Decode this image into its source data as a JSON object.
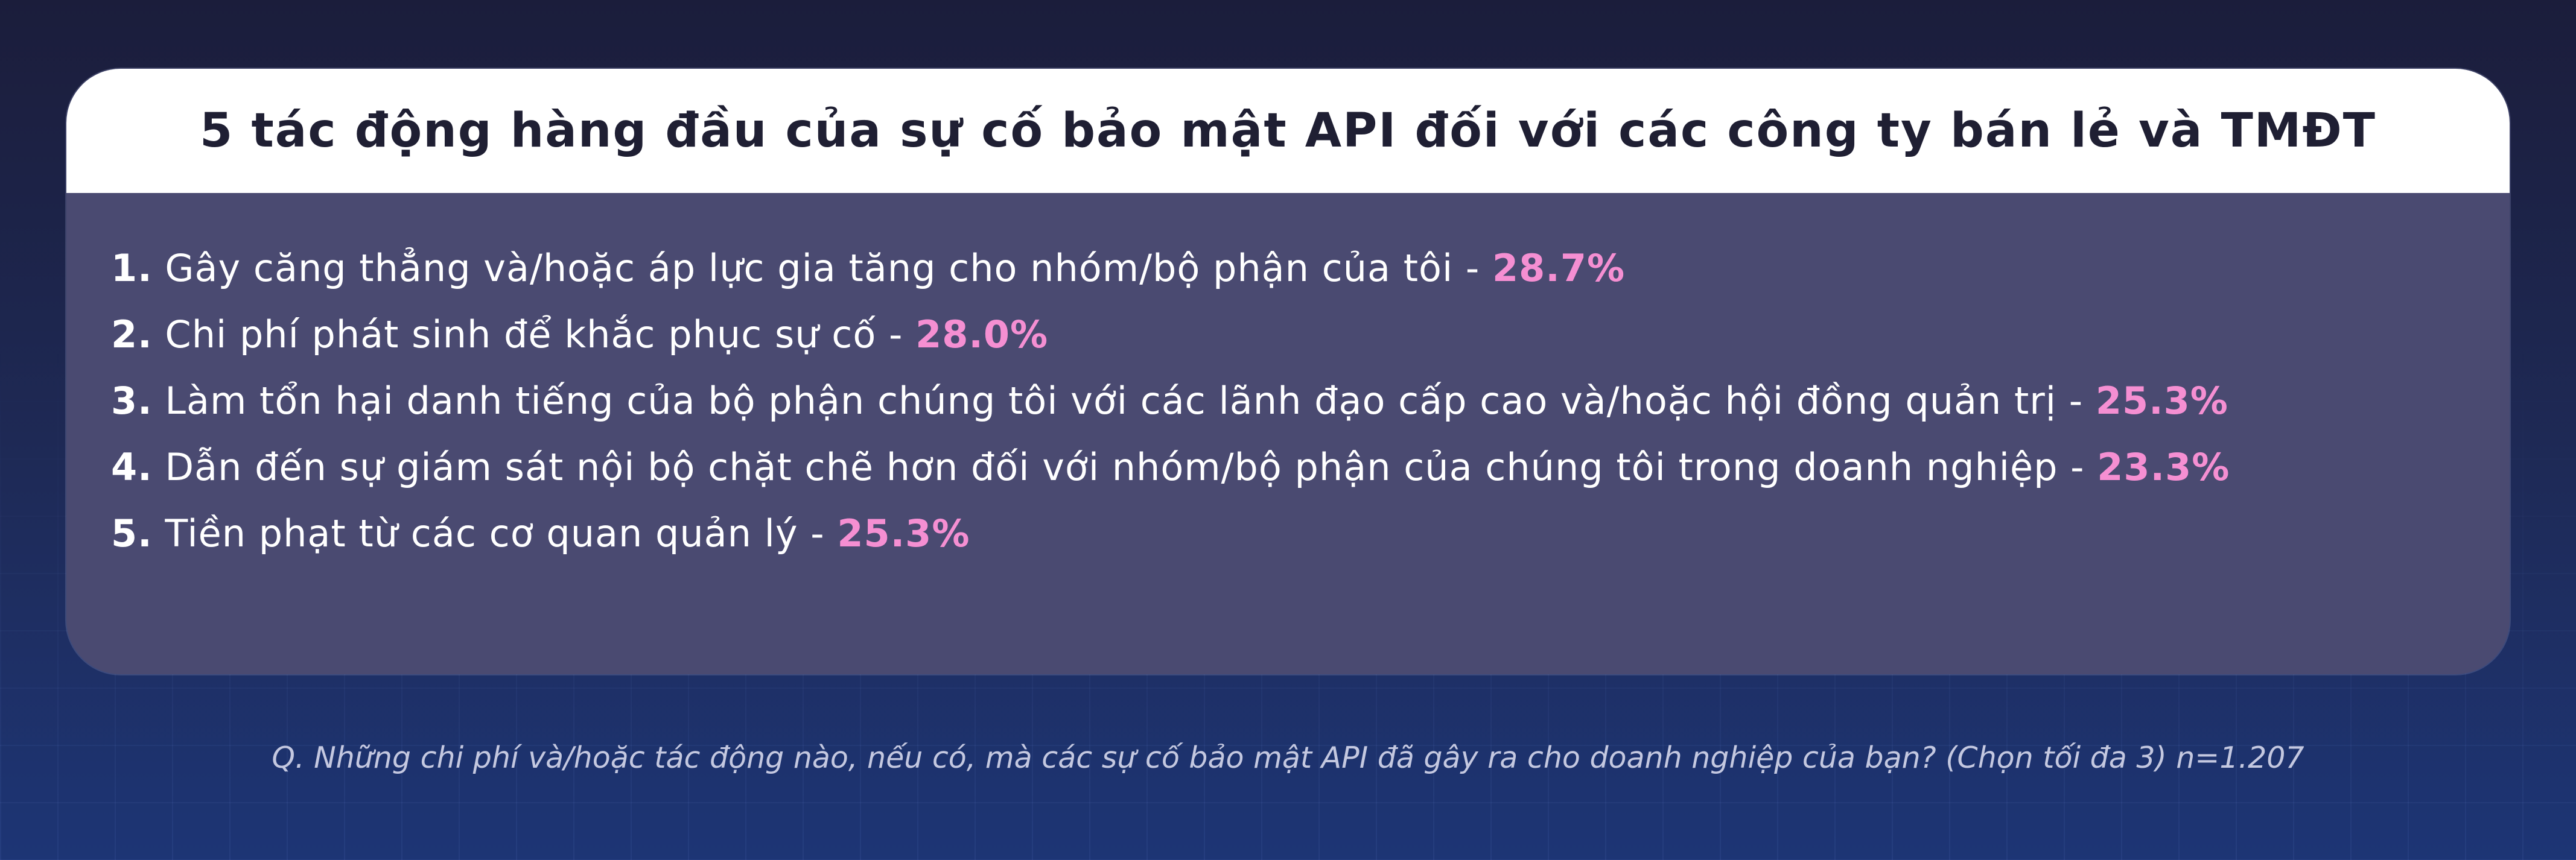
{
  "card": {
    "title": "5 tác động hàng đầu của sự cố bảo mật API đối với các công ty bán lẻ và TMĐT",
    "items": [
      {
        "number": "1.",
        "text": "Gây căng thẳng và/hoặc áp lực gia tăng cho nhóm/bộ phận của tôi - ",
        "percent": "28.7%"
      },
      {
        "number": "2.",
        "text": "Chi phí phát sinh để khắc phục sự cố - ",
        "percent": "28.0%"
      },
      {
        "number": "3.",
        "text": "Làm tổn hại danh tiếng của bộ phận chúng tôi với các lãnh đạo cấp cao và/hoặc hội đồng quản trị - ",
        "percent": "25.3%"
      },
      {
        "number": "4.",
        "text": "Dẫn đến sự giám sát nội bộ chặt chẽ hơn đối với nhóm/bộ phận của chúng tôi trong doanh nghiệp - ",
        "percent": "23.3%"
      },
      {
        "number": "5.",
        "text": "Tiền phạt từ các cơ quan quản lý - ",
        "percent": "25.3%"
      }
    ]
  },
  "footnote": "Q. Những chi phí và/hoặc tác động nào, nếu có, mà các sự cố bảo mật API đã gây ra cho doanh nghiệp của bạn? (Chọn tối đa 3) n=1.207",
  "colors": {
    "accent_percent": "#f58fd2",
    "card_body": "#4a4a71",
    "header_bg": "#ffffff"
  }
}
